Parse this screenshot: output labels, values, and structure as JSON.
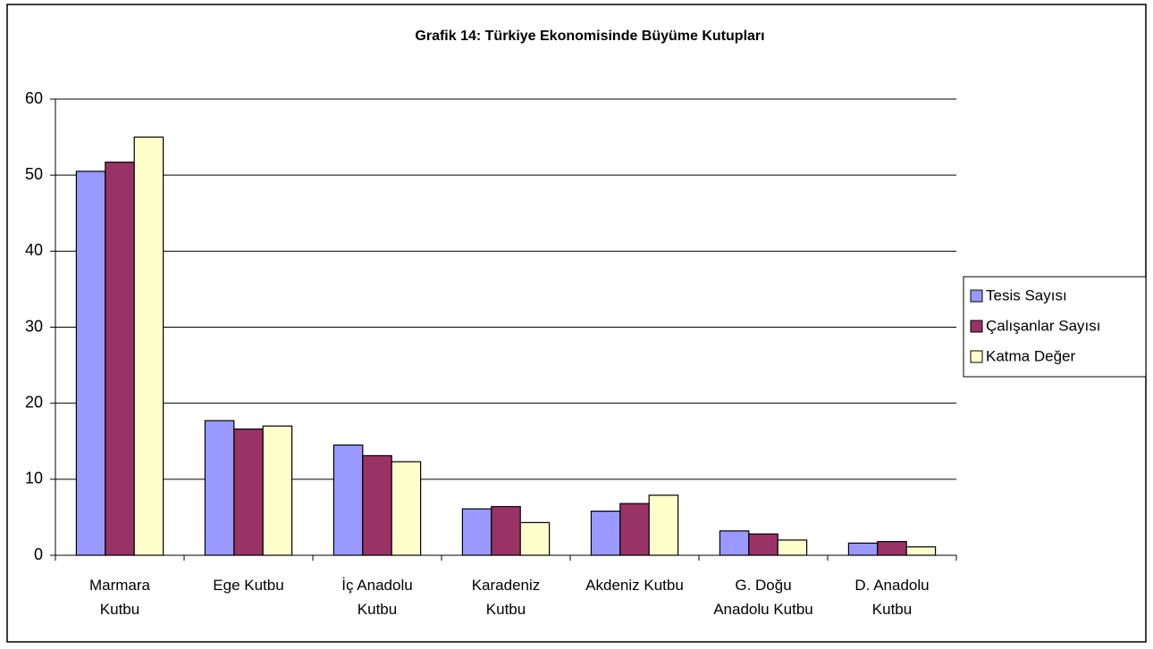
{
  "chart_data": {
    "type": "bar",
    "title": "Grafik 14: Türkiye Ekonomisinde Büyüme Kutupları",
    "categories": [
      "Marmara\nKutbu",
      "Ege Kutbu",
      "İç Anadolu\nKutbu",
      "Karadeniz\nKutbu",
      "Akdeniz Kutbu",
      "G. Doğu\nAnadolu Kutbu",
      "D. Anadolu\nKutbu"
    ],
    "series": [
      {
        "name": "Tesis Sayısı",
        "color": "#9999ff",
        "values": [
          50.5,
          17.7,
          14.5,
          6.1,
          5.8,
          3.2,
          1.6
        ]
      },
      {
        "name": "Çalışanlar Sayısı",
        "color": "#993366",
        "values": [
          51.7,
          16.6,
          13.1,
          6.4,
          6.8,
          2.8,
          1.8
        ]
      },
      {
        "name": "Katma Değer",
        "color": "#ffffcc",
        "values": [
          55,
          17,
          12.3,
          4.3,
          7.9,
          2.0,
          1.1
        ]
      }
    ],
    "ylim": [
      0,
      60
    ],
    "yticks": [
      0,
      10,
      20,
      30,
      40,
      50,
      60
    ],
    "grid": true,
    "legend": "right"
  }
}
